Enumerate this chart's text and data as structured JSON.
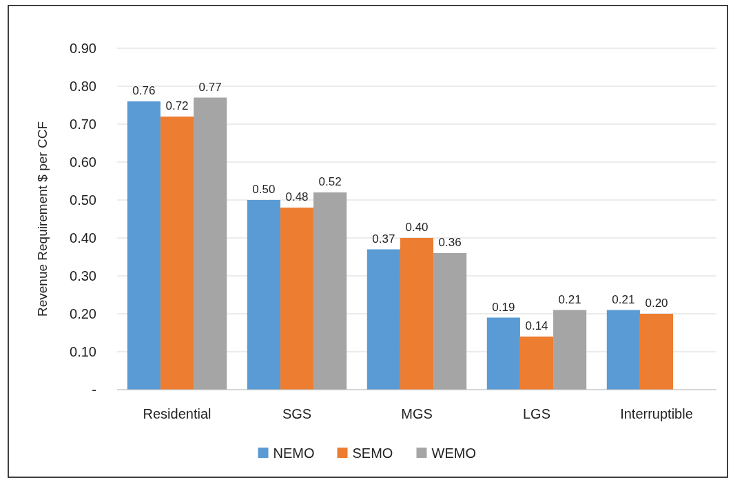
{
  "chart_data": {
    "type": "bar",
    "ylabel": "Revenue Requirement $ per CCF",
    "categories": [
      "Residential",
      "SGS",
      "MGS",
      "LGS",
      "Interruptible"
    ],
    "series": [
      {
        "name": "NEMO",
        "color": "#5b9bd5",
        "values": [
          0.76,
          0.5,
          0.37,
          0.19,
          0.21
        ],
        "value_labels": [
          "0.76",
          "0.50",
          "0.37",
          "0.19",
          "0.21"
        ]
      },
      {
        "name": "SEMO",
        "color": "#ed7d31",
        "values": [
          0.72,
          0.48,
          0.4,
          0.14,
          0.2
        ],
        "value_labels": [
          "0.72",
          "0.48",
          "0.40",
          "0.14",
          "0.20"
        ]
      },
      {
        "name": "WEMO",
        "color": "#a5a5a5",
        "values": [
          0.77,
          0.52,
          0.36,
          0.21,
          null
        ],
        "value_labels": [
          "0.77",
          "0.52",
          "0.36",
          "0.21",
          null
        ]
      }
    ],
    "ylim": [
      0,
      0.9
    ],
    "yticks": [
      {
        "value": 0,
        "label": "-"
      },
      {
        "value": 0.1,
        "label": "0.10"
      },
      {
        "value": 0.2,
        "label": "0.20"
      },
      {
        "value": 0.3,
        "label": "0.30"
      },
      {
        "value": 0.4,
        "label": "0.40"
      },
      {
        "value": 0.5,
        "label": "0.50"
      },
      {
        "value": 0.6,
        "label": "0.60"
      },
      {
        "value": 0.7,
        "label": "0.70"
      },
      {
        "value": 0.8,
        "label": "0.80"
      },
      {
        "value": 0.9,
        "label": "0.90"
      }
    ],
    "grid": "y",
    "legend": "bottom"
  }
}
